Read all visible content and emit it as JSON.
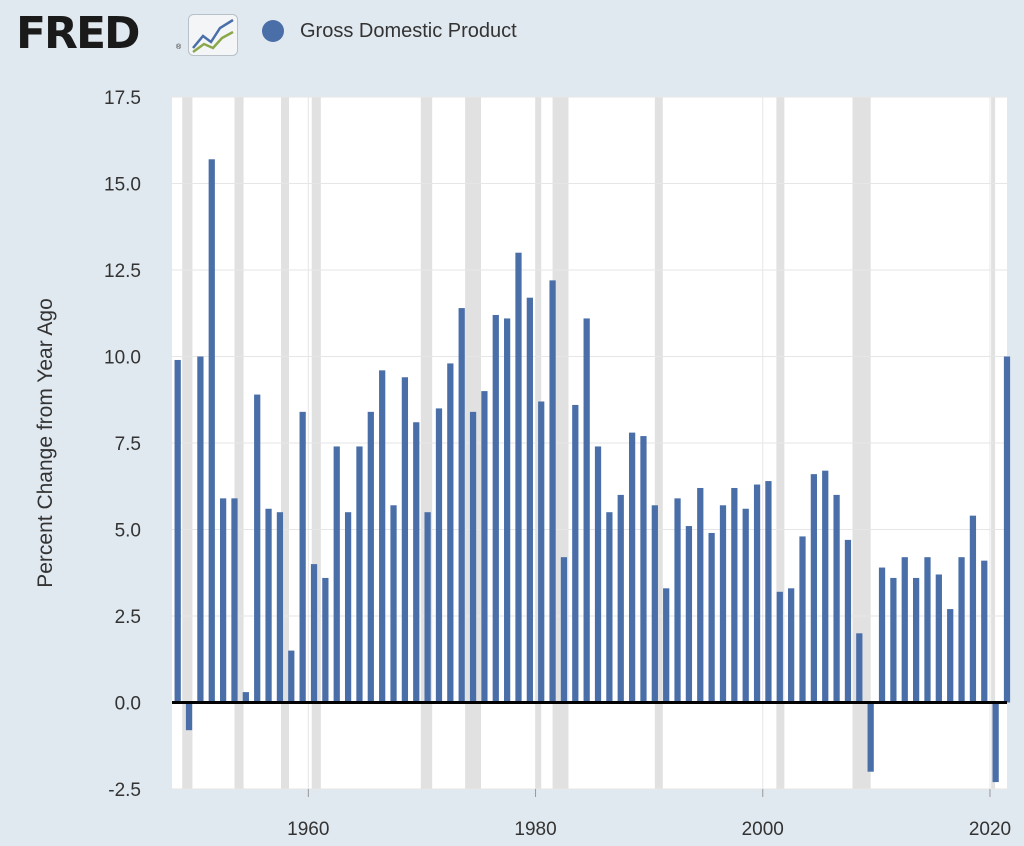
{
  "header": {
    "logo_text": "FRED",
    "logo_mark": "®",
    "logo_icon": "line-chart-icon"
  },
  "colors": {
    "background": "#e1e9f0",
    "plot_background": "#ffffff",
    "bar": "#4a6fa8",
    "recession": "#e1e1e1",
    "zero_line": "#000000"
  },
  "chart_data": {
    "type": "bar",
    "title": "",
    "xlabel": "",
    "ylabel": "Percent Change from Year Ago",
    "ylim": [
      -2.5,
      17.5
    ],
    "xlim": [
      1948,
      2021.5
    ],
    "yticks": [
      "-2.5",
      "0.0",
      "2.5",
      "5.0",
      "7.5",
      "10.0",
      "12.5",
      "15.0",
      "17.5"
    ],
    "xticks": [
      "1960",
      "1980",
      "2000",
      "2020"
    ],
    "grid": true,
    "legend_position": "top-left",
    "series": [
      {
        "name": "Gross Domestic Product",
        "x": [
          1948,
          1949,
          1950,
          1951,
          1952,
          1953,
          1954,
          1955,
          1956,
          1957,
          1958,
          1959,
          1960,
          1961,
          1962,
          1963,
          1964,
          1965,
          1966,
          1967,
          1968,
          1969,
          1970,
          1971,
          1972,
          1973,
          1974,
          1975,
          1976,
          1977,
          1978,
          1979,
          1980,
          1981,
          1982,
          1983,
          1984,
          1985,
          1986,
          1987,
          1988,
          1989,
          1990,
          1991,
          1992,
          1993,
          1994,
          1995,
          1996,
          1997,
          1998,
          1999,
          2000,
          2001,
          2002,
          2003,
          2004,
          2005,
          2006,
          2007,
          2008,
          2009,
          2010,
          2011,
          2012,
          2013,
          2014,
          2015,
          2016,
          2017,
          2018,
          2019,
          2020,
          2021
        ],
        "values": [
          9.9,
          -0.8,
          10.0,
          15.7,
          5.9,
          5.9,
          0.3,
          8.9,
          5.6,
          5.5,
          1.5,
          8.4,
          4.0,
          3.6,
          7.4,
          5.5,
          7.4,
          8.4,
          9.6,
          5.7,
          9.4,
          8.1,
          5.5,
          8.5,
          9.8,
          11.4,
          8.4,
          9.0,
          11.2,
          11.1,
          13.0,
          11.7,
          8.7,
          12.2,
          4.2,
          8.6,
          11.1,
          7.4,
          5.5,
          6.0,
          7.8,
          7.7,
          5.7,
          3.3,
          5.9,
          5.1,
          6.2,
          4.9,
          5.7,
          6.2,
          5.6,
          6.3,
          6.4,
          3.2,
          3.3,
          4.8,
          6.6,
          6.7,
          6.0,
          4.7,
          2.0,
          -2.0,
          3.9,
          3.6,
          4.2,
          3.6,
          4.2,
          3.7,
          2.7,
          4.2,
          5.4,
          4.1,
          -2.3,
          10.0
        ]
      }
    ],
    "recessions": [
      [
        1948.9,
        1949.8
      ],
      [
        1953.5,
        1954.3
      ],
      [
        1957.6,
        1958.3
      ],
      [
        1960.3,
        1961.1
      ],
      [
        1969.9,
        1970.9
      ],
      [
        1973.8,
        1975.2
      ],
      [
        1980.0,
        1980.5
      ],
      [
        1981.5,
        1982.9
      ],
      [
        1990.5,
        1991.2
      ],
      [
        2001.2,
        2001.9
      ],
      [
        2007.9,
        2009.5
      ],
      [
        2020.1,
        2020.4
      ]
    ]
  }
}
